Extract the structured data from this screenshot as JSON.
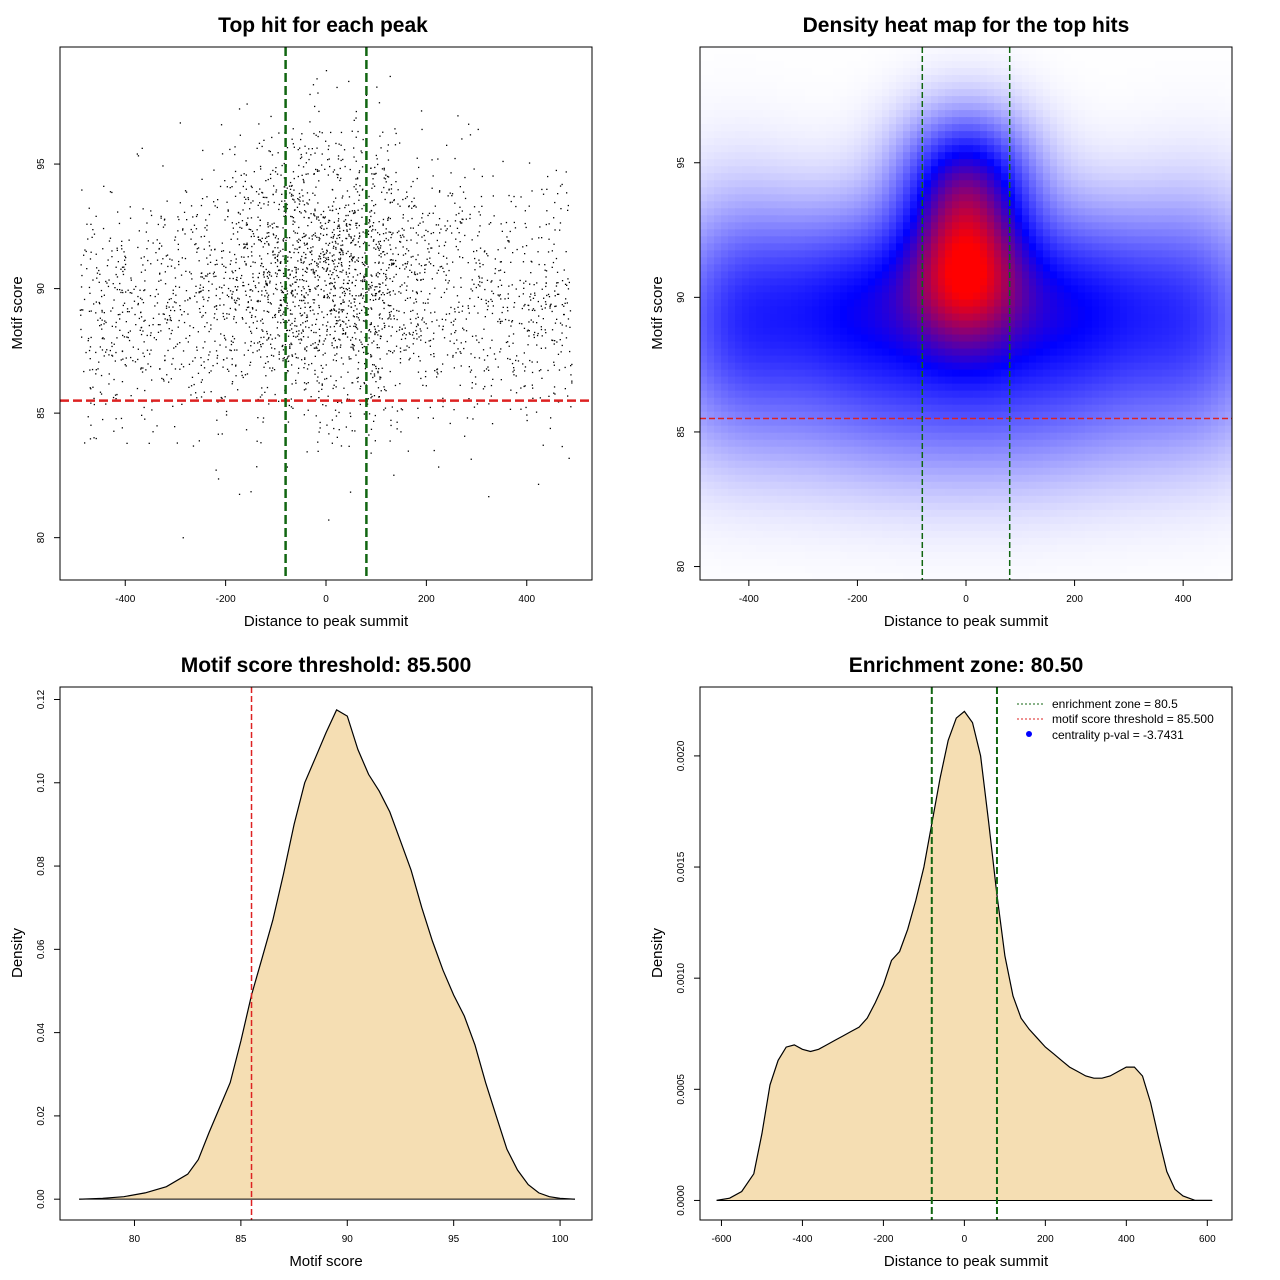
{
  "chart_data": [
    {
      "id": "scatter",
      "type": "scatter",
      "title": "Top hit for each peak",
      "xlabel": "Distance to peak summit",
      "ylabel": "Motif score",
      "xlim": [
        -530,
        530
      ],
      "ylim": [
        78.3,
        99.7
      ],
      "xticks": [
        -400,
        -200,
        0,
        200,
        400
      ],
      "yticks": [
        80,
        85,
        90,
        95
      ],
      "hline": {
        "y": 85.5,
        "color": "#dd2222",
        "style": "dashed"
      },
      "vlines": [
        {
          "x": -80.5,
          "color": "#116611",
          "style": "dashed"
        },
        {
          "x": 80.5,
          "color": "#116611",
          "style": "dashed"
        }
      ],
      "point_color": "#000000",
      "point_model": {
        "n": 3200,
        "x_range": [
          -490,
          490
        ],
        "score_range": [
          80,
          99
        ],
        "center_fraction": 0.42,
        "center_x_sd": 120,
        "center_score_mean": 91.2,
        "center_score_sd": 2.8,
        "background_score_mean": 89.3,
        "background_score_sd": 2.5
      }
    },
    {
      "id": "heatmap",
      "type": "heatmap",
      "title": "Density heat map for the top hits",
      "xlabel": "Distance to peak summit",
      "ylabel": "Motif score",
      "xlim": [
        -490,
        490
      ],
      "ylim": [
        79.5,
        99.3
      ],
      "xticks": [
        -400,
        -200,
        0,
        200,
        400
      ],
      "yticks": [
        80,
        85,
        90,
        95
      ],
      "hline": {
        "y": 85.5,
        "color": "#dd2222",
        "style": "dashed"
      },
      "vlines": [
        {
          "x": -80.5,
          "color": "#116611",
          "style": "dashed"
        },
        {
          "x": 80.5,
          "color": "#116611",
          "style": "dashed"
        }
      ],
      "colors": [
        "#ffffff",
        "#0000ff",
        "#ff0000"
      ],
      "density_components": [
        {
          "x": 0,
          "y": 91.3,
          "sx": 75,
          "sy": 2.2,
          "w": 1.0
        },
        {
          "x": 0,
          "y": 94.6,
          "sx": 80,
          "sy": 1.6,
          "w": 0.55
        },
        {
          "x": -190,
          "y": 89.8,
          "sx": 140,
          "sy": 2.3,
          "w": 0.62
        },
        {
          "x": 190,
          "y": 89.8,
          "sx": 140,
          "sy": 2.3,
          "w": 0.62
        },
        {
          "x": -430,
          "y": 89.4,
          "sx": 90,
          "sy": 2.8,
          "w": 0.38
        },
        {
          "x": 430,
          "y": 89.4,
          "sx": 90,
          "sy": 2.8,
          "w": 0.34
        },
        {
          "x": 0,
          "y": 86.0,
          "sx": 300,
          "sy": 2.2,
          "w": 0.32
        }
      ]
    },
    {
      "id": "score-density",
      "type": "area",
      "title": "Motif score threshold: 85.500",
      "xlabel": "Motif score",
      "ylabel": "Density",
      "xlim": [
        76.5,
        101.5
      ],
      "ylim": [
        -0.005,
        0.123
      ],
      "xticks": [
        80,
        85,
        90,
        95,
        100
      ],
      "yticks": [
        0,
        0.02,
        0.04,
        0.06,
        0.08,
        0.1,
        0.12
      ],
      "ytick_labels": [
        "0.00",
        "0.02",
        "0.04",
        "0.06",
        "0.08",
        "0.10",
        "0.12"
      ],
      "fill_color": "#f5deb3",
      "vlines": [
        {
          "x": 85.5,
          "color": "#dd2222",
          "style": "dashed"
        }
      ],
      "x": [
        77.4,
        78.5,
        79.5,
        80.5,
        81.5,
        82.5,
        83.0,
        83.5,
        84.0,
        84.5,
        85.0,
        85.5,
        86.0,
        86.5,
        87.0,
        87.5,
        88.0,
        88.5,
        89.0,
        89.5,
        90.0,
        90.5,
        91.0,
        91.5,
        92.0,
        92.5,
        93.0,
        93.5,
        94.0,
        94.5,
        95.0,
        95.5,
        96.0,
        96.5,
        97.0,
        97.5,
        98.0,
        98.5,
        99.0,
        99.5,
        100.0,
        100.7
      ],
      "y": [
        0.0,
        0.0002,
        0.0006,
        0.0015,
        0.003,
        0.006,
        0.0095,
        0.016,
        0.022,
        0.028,
        0.038,
        0.049,
        0.058,
        0.067,
        0.078,
        0.09,
        0.1,
        0.106,
        0.112,
        0.1175,
        0.116,
        0.108,
        0.102,
        0.098,
        0.093,
        0.086,
        0.079,
        0.07,
        0.062,
        0.055,
        0.049,
        0.044,
        0.037,
        0.028,
        0.02,
        0.012,
        0.007,
        0.0035,
        0.0015,
        0.0006,
        0.0002,
        0.0
      ]
    },
    {
      "id": "distance-density",
      "type": "area",
      "title": "Enrichment zone: 80.50",
      "xlabel": "Distance to peak summit",
      "ylabel": "Density",
      "xlim": [
        -653,
        661
      ],
      "ylim": [
        -8.8e-05,
        0.00231
      ],
      "xticks": [
        -600,
        -400,
        -200,
        0,
        200,
        400,
        600
      ],
      "yticks": [
        0,
        0.0005,
        0.001,
        0.0015,
        0.002
      ],
      "ytick_labels": [
        "0.0000",
        "0.0005",
        "0.0010",
        "0.0015",
        "0.0020"
      ],
      "fill_color": "#f5deb3",
      "vlines": [
        {
          "x": -80.5,
          "color": "#116611",
          "style": "dashed"
        },
        {
          "x": 80.5,
          "color": "#116611",
          "style": "dashed"
        }
      ],
      "legend": {
        "position": "top-right",
        "entries": [
          {
            "label": "enrichment zone = 80.5",
            "color": "#116611",
            "marker": "dotted-line"
          },
          {
            "label": "motif score threshold = 85.500",
            "color": "#dd2222",
            "marker": "dotted-line"
          },
          {
            "label": "centrality p-val = -3.7431",
            "color": "#0000ff",
            "marker": "point"
          }
        ]
      },
      "x": [
        -612,
        -580,
        -550,
        -520,
        -500,
        -480,
        -460,
        -440,
        -420,
        -400,
        -380,
        -360,
        -340,
        -320,
        -300,
        -280,
        -260,
        -240,
        -220,
        -200,
        -180,
        -160,
        -140,
        -120,
        -100,
        -80,
        -60,
        -40,
        -20,
        0,
        20,
        40,
        60,
        80,
        100,
        120,
        140,
        160,
        180,
        200,
        220,
        240,
        260,
        280,
        300,
        320,
        340,
        360,
        380,
        400,
        420,
        440,
        460,
        480,
        500,
        520,
        540,
        570,
        612
      ],
      "y": [
        0.0,
        1e-05,
        4e-05,
        0.00012,
        0.0003,
        0.00052,
        0.00063,
        0.00069,
        0.0007,
        0.00068,
        0.00067,
        0.00068,
        0.0007,
        0.00072,
        0.00074,
        0.00076,
        0.00078,
        0.00082,
        0.00089,
        0.00097,
        0.00108,
        0.00112,
        0.00122,
        0.00135,
        0.0015,
        0.0017,
        0.0019,
        0.00207,
        0.00217,
        0.0022,
        0.00215,
        0.002,
        0.0017,
        0.00138,
        0.0011,
        0.00092,
        0.00082,
        0.00077,
        0.00073,
        0.00069,
        0.00066,
        0.00063,
        0.0006,
        0.00058,
        0.00056,
        0.00055,
        0.00055,
        0.00056,
        0.00058,
        0.0006,
        0.0006,
        0.00056,
        0.00044,
        0.00028,
        0.00013,
        5e-05,
        2e-05,
        0.0,
        0.0
      ]
    }
  ]
}
